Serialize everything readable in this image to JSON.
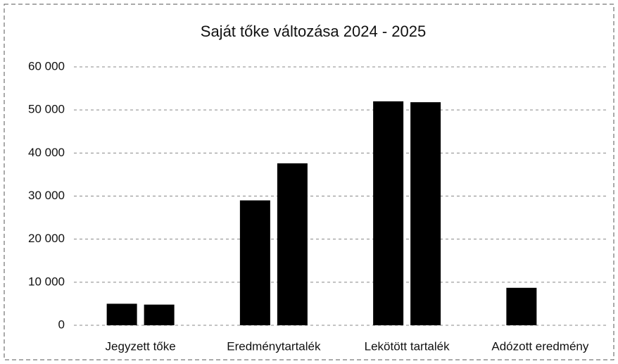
{
  "chart_data": {
    "type": "bar",
    "title": "Saját tőke változása 2024  - 2025",
    "categories": [
      "Jegyzett tőke",
      "Eredménytartalék",
      "Lekötött tartalék",
      "Adózott eredmény"
    ],
    "series": [
      {
        "color": "#000000",
        "values": [
          5000,
          29000,
          52000,
          8700
        ]
      },
      {
        "color": "#000000",
        "values": [
          4800,
          37600,
          51800,
          null
        ]
      }
    ],
    "ylim": [
      0,
      60000
    ],
    "yticks": [
      0,
      {
        "value": 10000,
        "label": "10 000"
      },
      {
        "value": 20000,
        "label": "20 000"
      },
      {
        "value": 30000,
        "label": "30 000"
      },
      {
        "value": 40000,
        "label": "40 000"
      },
      {
        "value": 50000,
        "label": "50 000"
      },
      {
        "value": 60000,
        "label": "60 000"
      }
    ],
    "grid": true
  }
}
